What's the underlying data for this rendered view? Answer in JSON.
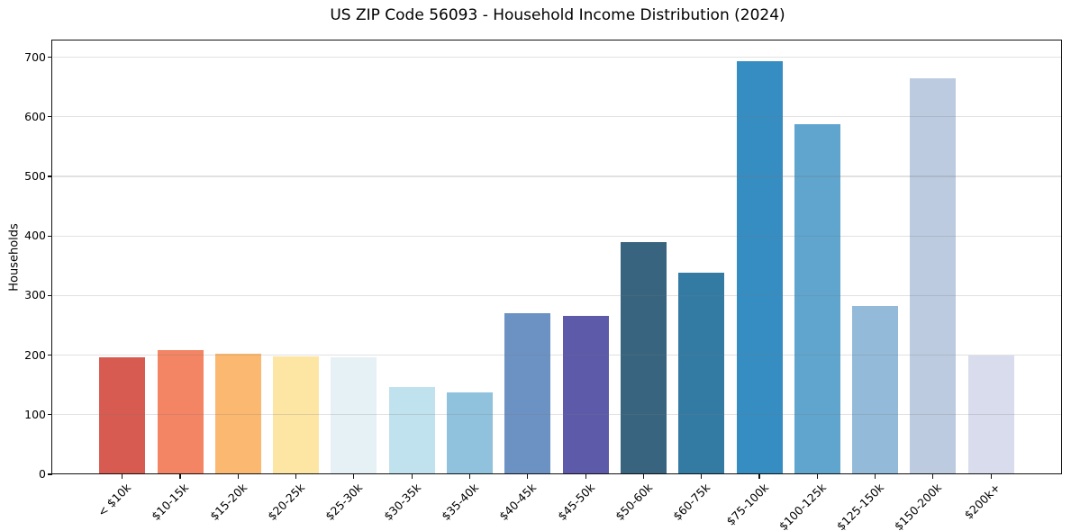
{
  "page": {
    "background_color": "#ffffff"
  },
  "chart_data": {
    "type": "bar",
    "title": "US ZIP Code 56093 - Household Income Distribution (2024)",
    "xlabel": "",
    "ylabel": "Households",
    "categories": [
      "< $10k",
      "$10-15k",
      "$15-20k",
      "$20-25k",
      "$25-30k",
      "$30-35k",
      "$35-40k",
      "$40-45k",
      "$45-50k",
      "$50-60k",
      "$60-75k",
      "$75-100k",
      "$100-125k",
      "$125-150k",
      "$150-200k",
      "$200k+"
    ],
    "values": [
      196,
      209,
      203,
      198,
      196,
      146,
      138,
      270,
      266,
      389,
      339,
      694,
      587,
      283,
      664,
      200
    ],
    "bar_colors": [
      "#d85b51",
      "#f38565",
      "#fbb870",
      "#fde5a4",
      "#e6f1f6",
      "#c0e1ee",
      "#90c2de",
      "#6c92c4",
      "#5d5aa9",
      "#386480",
      "#347ba4",
      "#368dc2",
      "#5fa5cd",
      "#93bad8",
      "#bccbdf",
      "#d9dcec"
    ],
    "yticks": [
      0,
      100,
      200,
      300,
      400,
      500,
      600,
      700
    ],
    "ylim": [
      0,
      728
    ],
    "grid": "horizontal",
    "gridline_color": "rgba(120,120,120,0.22)",
    "axis_color": "#111111",
    "legend_position": "none"
  }
}
